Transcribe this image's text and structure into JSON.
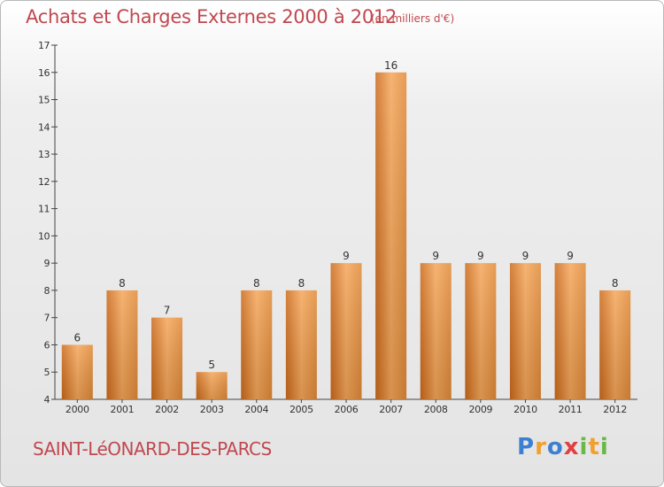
{
  "title": "Achats et Charges Externes 2000 à 2012",
  "unit_label": "(en milliers d'€)",
  "place": "SAINT-LéONARD-DES-PARCS",
  "logo_text": "Proxiti",
  "colors": {
    "bar_light": "#f5a65a",
    "bar_dark": "#d8741e",
    "title": "#c0484f"
  },
  "chart_data": {
    "type": "bar",
    "categories": [
      "2000",
      "2001",
      "2002",
      "2003",
      "2004",
      "2005",
      "2006",
      "2007",
      "2008",
      "2009",
      "2010",
      "2011",
      "2012"
    ],
    "values": [
      6,
      8,
      7,
      5,
      8,
      8,
      9,
      16,
      9,
      9,
      9,
      9,
      8
    ],
    "ylim": [
      4,
      17
    ],
    "yticks": [
      4,
      5,
      6,
      7,
      8,
      9,
      10,
      11,
      12,
      13,
      14,
      15,
      16,
      17
    ],
    "title": "Achats et Charges Externes 2000 à 2012",
    "xlabel": "",
    "ylabel": "",
    "grid": false
  }
}
